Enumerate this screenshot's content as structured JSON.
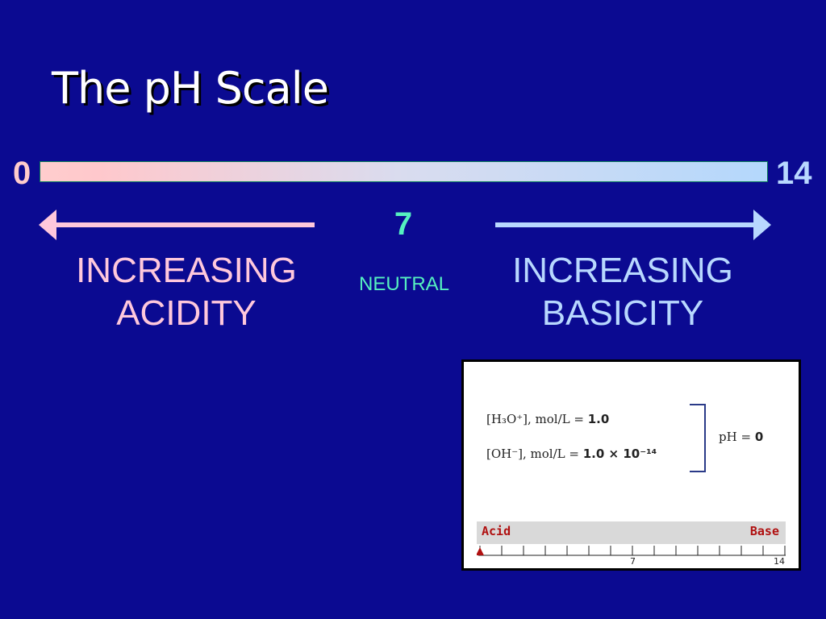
{
  "title": "The pH Scale",
  "scale": {
    "min_label": "0",
    "max_label": "14"
  },
  "acid": {
    "line1": "INCREASING",
    "line2": "ACIDITY",
    "color": "#ffc8dc"
  },
  "base": {
    "line1": "INCREASING",
    "line2": "BASICITY",
    "color": "#b8d8ff"
  },
  "neutral": {
    "value": "7",
    "label": "NEUTRAL",
    "color": "#55f0c0"
  },
  "inset": {
    "h3o_label": "[H₃O⁺], mol/L =",
    "h3o_value": "1.0",
    "oh_label": "[OH⁻], mol/L =",
    "oh_value": "1.0 × 10⁻¹⁴",
    "ph_label": "pH =",
    "ph_value": "0",
    "scale_left": "Acid",
    "scale_right": "Base",
    "tick_mid": "7",
    "tick_max": "14",
    "marker_value": 0
  }
}
